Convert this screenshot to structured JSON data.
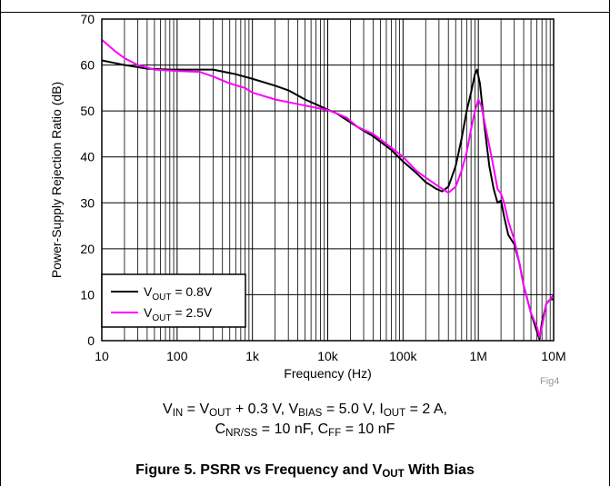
{
  "chart_data": {
    "type": "line",
    "xlabel": "Frequency (Hz)",
    "ylabel": "Power-Supply Rejection Ratio (dB)",
    "xscale": "log",
    "xlim": [
      10,
      10000000
    ],
    "ylim": [
      0,
      70
    ],
    "x_ticks": [
      "10",
      "100",
      "1k",
      "10k",
      "100k",
      "1M",
      "10M"
    ],
    "y_ticks": [
      "0",
      "10",
      "20",
      "30",
      "40",
      "50",
      "60",
      "70"
    ],
    "grid": true,
    "legend_position": "bottom-left",
    "series": [
      {
        "name_main": "V",
        "name_sub": "OUT",
        "name_rest": " = 0.8V",
        "color": "#000000",
        "points": [
          [
            10,
            61
          ],
          [
            20,
            60
          ],
          [
            40,
            59.2
          ],
          [
            80,
            59
          ],
          [
            150,
            59
          ],
          [
            300,
            59
          ],
          [
            600,
            58
          ],
          [
            1000,
            57
          ],
          [
            2000,
            55.5
          ],
          [
            3000,
            54.5
          ],
          [
            5000,
            52.5
          ],
          [
            8000,
            51
          ],
          [
            10000,
            50.3
          ],
          [
            13000,
            49.5
          ],
          [
            18000,
            48
          ],
          [
            25000,
            46.5
          ],
          [
            40000,
            44.5
          ],
          [
            70000,
            41.5
          ],
          [
            100000,
            39
          ],
          [
            150000,
            36.5
          ],
          [
            200000,
            34.5
          ],
          [
            280000,
            33
          ],
          [
            330000,
            32.5
          ],
          [
            400000,
            33.5
          ],
          [
            500000,
            38
          ],
          [
            600000,
            44
          ],
          [
            700000,
            50
          ],
          [
            800000,
            54
          ],
          [
            900000,
            58
          ],
          [
            960000,
            59
          ],
          [
            1050000,
            56
          ],
          [
            1200000,
            47
          ],
          [
            1400000,
            38
          ],
          [
            1600000,
            33
          ],
          [
            1800000,
            30
          ],
          [
            2000000,
            30.5
          ],
          [
            2200000,
            27
          ],
          [
            2500000,
            23
          ],
          [
            3000000,
            21
          ],
          [
            3500000,
            17
          ],
          [
            4000000,
            12
          ],
          [
            5000000,
            6
          ],
          [
            6000000,
            2
          ],
          [
            6500000,
            0.3
          ],
          [
            7000000,
            4
          ],
          [
            8000000,
            8
          ],
          [
            9000000,
            9
          ],
          [
            10000000,
            9
          ]
        ]
      },
      {
        "name_main": "V",
        "name_sub": "OUT",
        "name_rest": " = 2.5V",
        "color": "#ff00ff",
        "points": [
          [
            10,
            65.5
          ],
          [
            15,
            63
          ],
          [
            20,
            61.5
          ],
          [
            30,
            60
          ],
          [
            50,
            59
          ],
          [
            100,
            58.7
          ],
          [
            200,
            58.5
          ],
          [
            300,
            57.5
          ],
          [
            500,
            56
          ],
          [
            800,
            55
          ],
          [
            1000,
            54
          ],
          [
            2000,
            52.5
          ],
          [
            4000,
            51.5
          ],
          [
            7000,
            50.7
          ],
          [
            10000,
            50.2
          ],
          [
            13000,
            49.5
          ],
          [
            18000,
            48.5
          ],
          [
            25000,
            46.5
          ],
          [
            40000,
            45
          ],
          [
            70000,
            42
          ],
          [
            100000,
            40
          ],
          [
            150000,
            37
          ],
          [
            200000,
            35.5
          ],
          [
            300000,
            33.5
          ],
          [
            400000,
            32.2
          ],
          [
            500000,
            33.5
          ],
          [
            600000,
            37
          ],
          [
            700000,
            41
          ],
          [
            800000,
            46
          ],
          [
            900000,
            50
          ],
          [
            1000000,
            52.5
          ],
          [
            1100000,
            51
          ],
          [
            1300000,
            45
          ],
          [
            1500000,
            40
          ],
          [
            1800000,
            33
          ],
          [
            2000000,
            32
          ],
          [
            2200000,
            30
          ],
          [
            2500000,
            26
          ],
          [
            3000000,
            22
          ],
          [
            3500000,
            17
          ],
          [
            4000000,
            12
          ],
          [
            5000000,
            6
          ],
          [
            6000000,
            3
          ],
          [
            6500000,
            0.8
          ],
          [
            7000000,
            3
          ],
          [
            8000000,
            8
          ],
          [
            9000000,
            9
          ],
          [
            10000000,
            10
          ]
        ]
      }
    ]
  },
  "caption": {
    "line1": [
      {
        "t": "V"
      },
      {
        "t": "IN",
        "sub": true
      },
      {
        "t": " = V"
      },
      {
        "t": "OUT",
        "sub": true
      },
      {
        "t": " + 0.3 V, V"
      },
      {
        "t": "BIAS",
        "sub": true
      },
      {
        "t": " = 5.0 V, I"
      },
      {
        "t": "OUT",
        "sub": true
      },
      {
        "t": " = 2 A,"
      }
    ],
    "line2": [
      {
        "t": "C"
      },
      {
        "t": "NR/SS",
        "sub": true
      },
      {
        "t": " = 10 nF, C"
      },
      {
        "t": "FF",
        "sub": true
      },
      {
        "t": " = 10 nF"
      }
    ],
    "title": [
      {
        "t": "Figure 5. PSRR vs Frequency and V"
      },
      {
        "t": "OUT",
        "sub": true
      },
      {
        "t": " With Bias"
      }
    ]
  },
  "figure_tag": "Fig4"
}
